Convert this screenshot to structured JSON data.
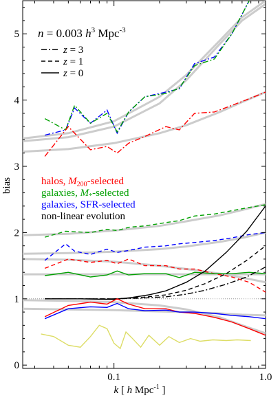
{
  "chart_data": {
    "type": "line",
    "xscale": "log",
    "xlim": [
      0.025,
      1.0
    ],
    "ylim": [
      -0.05,
      5.5
    ],
    "xlabel": "k [ h Mpc⁻¹ ]",
    "ylabel": "bias",
    "xticks": [
      {
        "value": 0.1,
        "label": "0.1"
      },
      {
        "value": 1.0,
        "label": "1.0"
      }
    ],
    "yticks": [
      {
        "value": 0,
        "label": "0"
      },
      {
        "value": 1,
        "label": "1"
      },
      {
        "value": 2,
        "label": "2"
      },
      {
        "value": 3,
        "label": "3"
      },
      {
        "value": 4,
        "label": "4"
      },
      {
        "value": 5,
        "label": "5"
      }
    ],
    "annotation": {
      "n": "n",
      "eq": " = 0.003 ",
      "h": "h",
      "exp3": "3",
      "mpc": " Mpc",
      "expm3": "-3"
    },
    "style_legend": [
      {
        "z_label": "z",
        "eq": " = 3",
        "dash": "8,3,2,3"
      },
      {
        "z_label": "z",
        "eq": " = 1",
        "dash": "6,4"
      },
      {
        "z_label": "z",
        "eq": " = 0",
        "dash": ""
      }
    ],
    "color_legend": [
      {
        "prefix": "halos, ",
        "var": "M",
        "sub": "200",
        "suffix": "-selected",
        "color": "#ff0000"
      },
      {
        "prefix": "galaxies, ",
        "var": "M",
        "sub": "*",
        "suffix": "-selected",
        "color": "#00a000"
      },
      {
        "prefix": "galaxies, SFR-selected",
        "var": "",
        "sub": "",
        "suffix": "",
        "color": "#0000ff"
      },
      {
        "prefix": "non-linear evolution",
        "var": "",
        "sub": "",
        "suffix": "",
        "color": "#000000"
      }
    ],
    "reference_line": {
      "y": 1.0,
      "color": "#999999"
    },
    "model_fits": {
      "color": "#cccccc",
      "curves": [
        {
          "x": [
            0.025,
            0.05,
            0.1,
            0.2,
            0.3,
            0.5,
            0.7,
            1.0
          ],
          "y": [
            3.38,
            3.44,
            3.6,
            3.95,
            4.3,
            4.85,
            5.2,
            5.45
          ]
        },
        {
          "x": [
            0.025,
            0.05,
            0.1,
            0.2,
            0.3,
            0.5,
            0.7,
            1.0
          ],
          "y": [
            3.42,
            3.5,
            3.68,
            4.05,
            4.38,
            4.9,
            5.25,
            5.5
          ]
        },
        {
          "x": [
            0.025,
            0.05,
            0.1,
            0.2,
            0.3,
            0.5,
            0.7,
            1.0
          ],
          "y": [
            3.22,
            3.26,
            3.35,
            3.5,
            3.62,
            3.82,
            3.97,
            4.12
          ]
        },
        {
          "x": [
            0.025,
            0.05,
            0.1,
            0.2,
            0.3,
            0.5,
            0.7,
            1.0
          ],
          "y": [
            1.96,
            1.98,
            2.03,
            2.1,
            2.17,
            2.26,
            2.34,
            2.43
          ]
        },
        {
          "x": [
            0.025,
            0.05,
            0.1,
            0.2,
            0.3,
            0.5,
            0.7,
            1.0
          ],
          "y": [
            1.68,
            1.69,
            1.71,
            1.75,
            1.79,
            1.86,
            1.92,
            2.0
          ]
        },
        {
          "x": [
            0.025,
            0.05,
            0.1,
            0.2,
            0.3,
            0.5,
            0.7,
            1.0
          ],
          "y": [
            1.6,
            1.59,
            1.56,
            1.5,
            1.45,
            1.38,
            1.32,
            1.25
          ]
        },
        {
          "x": [
            0.025,
            0.05,
            0.1,
            0.2,
            0.3,
            0.5,
            0.7,
            1.0
          ],
          "y": [
            1.37,
            1.37,
            1.37,
            1.37,
            1.37,
            1.37,
            1.37,
            1.37
          ]
        },
        {
          "x": [
            0.025,
            0.05,
            0.1,
            0.2,
            0.3,
            0.5,
            0.7,
            1.0
          ],
          "y": [
            0.85,
            0.84,
            0.83,
            0.81,
            0.8,
            0.78,
            0.76,
            0.75
          ]
        },
        {
          "x": [
            0.025,
            0.05,
            0.1,
            0.2,
            0.3,
            0.5,
            0.7,
            1.0
          ],
          "y": [
            0.98,
            0.97,
            0.95,
            0.9,
            0.84,
            0.72,
            0.6,
            0.48
          ]
        }
      ]
    },
    "series": [
      {
        "color": "#0000ff",
        "style": "dashdot",
        "x": [
          0.035,
          0.048,
          0.055,
          0.07,
          0.09,
          0.105,
          0.125,
          0.16,
          0.22,
          0.27,
          0.34,
          0.46,
          0.6,
          0.78
        ],
        "y": [
          3.47,
          3.55,
          3.88,
          3.65,
          3.85,
          3.5,
          3.82,
          4.05,
          4.12,
          4.17,
          4.55,
          4.65,
          5.0,
          5.5
        ]
      },
      {
        "color": "#00a000",
        "style": "dashdot",
        "x": [
          0.035,
          0.048,
          0.055,
          0.07,
          0.09,
          0.105,
          0.125,
          0.16,
          0.22,
          0.27,
          0.34,
          0.46,
          0.6,
          0.78
        ],
        "y": [
          3.72,
          3.55,
          3.92,
          3.65,
          3.8,
          3.52,
          3.82,
          4.05,
          4.1,
          4.18,
          4.52,
          4.62,
          5.0,
          5.5
        ]
      },
      {
        "color": "#ff0000",
        "style": "dashdot",
        "x": [
          0.035,
          0.05,
          0.07,
          0.09,
          0.105,
          0.125,
          0.16,
          0.22,
          0.27,
          0.34,
          0.46,
          0.6,
          0.78,
          1.0
        ],
        "y": [
          3.15,
          3.6,
          3.25,
          3.3,
          3.2,
          3.35,
          3.45,
          3.6,
          3.55,
          3.8,
          3.82,
          3.92,
          4.02,
          4.12
        ]
      },
      {
        "color": "#00a000",
        "style": "dashed",
        "x": [
          0.035,
          0.048,
          0.07,
          0.09,
          0.105,
          0.125,
          0.16,
          0.22,
          0.27,
          0.34,
          0.46,
          0.6,
          0.78,
          1.0
        ],
        "y": [
          1.93,
          2.02,
          2.0,
          2.05,
          2.03,
          2.08,
          2.1,
          2.15,
          2.18,
          2.25,
          2.28,
          2.33,
          2.38,
          2.42
        ]
      },
      {
        "color": "#0000ff",
        "style": "dashed",
        "x": [
          0.035,
          0.048,
          0.055,
          0.07,
          0.09,
          0.105,
          0.125,
          0.16,
          0.22,
          0.27,
          0.34,
          0.46,
          0.6,
          0.78,
          1.0
        ],
        "y": [
          1.58,
          1.83,
          1.72,
          1.67,
          1.75,
          1.7,
          1.73,
          1.78,
          1.8,
          1.83,
          1.85,
          1.88,
          1.92,
          1.97,
          2.0
        ]
      },
      {
        "color": "#ff0000",
        "style": "dashed",
        "x": [
          0.035,
          0.05,
          0.07,
          0.09,
          0.105,
          0.125,
          0.16,
          0.22,
          0.27,
          0.34,
          0.46,
          0.6,
          0.78,
          1.0
        ],
        "y": [
          1.46,
          1.6,
          1.55,
          1.58,
          1.53,
          1.6,
          1.5,
          1.5,
          1.45,
          1.45,
          1.38,
          1.33,
          1.25,
          1.1
        ]
      },
      {
        "color": "#00a000",
        "style": "solid",
        "x": [
          0.035,
          0.05,
          0.07,
          0.09,
          0.105,
          0.125,
          0.16,
          0.22,
          0.27,
          0.34,
          0.46,
          0.6,
          0.78,
          1.0
        ],
        "y": [
          1.35,
          1.4,
          1.33,
          1.36,
          1.42,
          1.36,
          1.38,
          1.38,
          1.32,
          1.4,
          1.38,
          1.38,
          1.4,
          1.38
        ]
      },
      {
        "color": "#000000",
        "style": "dashdot",
        "x": [
          0.035,
          0.06,
          0.1,
          0.15,
          0.22,
          0.3,
          0.4,
          0.55,
          0.75,
          1.0
        ],
        "y": [
          1.0,
          1.0,
          1.0,
          1.01,
          1.03,
          1.07,
          1.13,
          1.22,
          1.33,
          1.48
        ]
      },
      {
        "color": "#000000",
        "style": "dashed",
        "x": [
          0.035,
          0.06,
          0.1,
          0.15,
          0.22,
          0.3,
          0.4,
          0.55,
          0.75,
          1.0
        ],
        "y": [
          1.0,
          1.0,
          1.0,
          1.02,
          1.06,
          1.13,
          1.23,
          1.38,
          1.58,
          1.8
        ]
      },
      {
        "color": "#000000",
        "style": "solid",
        "x": [
          0.035,
          0.06,
          0.1,
          0.13,
          0.17,
          0.22,
          0.3,
          0.4,
          0.55,
          0.75,
          1.0
        ],
        "y": [
          1.0,
          1.0,
          0.99,
          1.02,
          1.06,
          1.12,
          1.25,
          1.42,
          1.7,
          2.02,
          2.4
        ]
      },
      {
        "color": "#ff0000",
        "style": "solid",
        "x": [
          0.035,
          0.05,
          0.07,
          0.09,
          0.105,
          0.125,
          0.16,
          0.22,
          0.27,
          0.34,
          0.46,
          0.6,
          0.78,
          1.0
        ],
        "y": [
          0.73,
          0.9,
          0.95,
          0.92,
          1.0,
          0.92,
          0.85,
          0.85,
          0.8,
          0.78,
          0.72,
          0.65,
          0.55,
          0.45
        ]
      },
      {
        "color": "#0000ff",
        "style": "solid",
        "x": [
          0.035,
          0.05,
          0.07,
          0.09,
          0.105,
          0.125,
          0.16,
          0.22,
          0.27,
          0.34,
          0.46,
          0.6,
          0.78,
          1.0
        ],
        "y": [
          0.7,
          0.85,
          0.88,
          0.87,
          0.93,
          0.85,
          0.82,
          0.83,
          0.8,
          0.8,
          0.78,
          0.75,
          0.73,
          0.7
        ]
      },
      {
        "color": "#dddd66",
        "style": "solid",
        "x": [
          0.033,
          0.04,
          0.05,
          0.06,
          0.07,
          0.08,
          0.09,
          0.1,
          0.11,
          0.12,
          0.13,
          0.15,
          0.17,
          0.2,
          0.23,
          0.27,
          0.32,
          0.37,
          0.45,
          0.55,
          0.65,
          0.8
        ],
        "y": [
          0.47,
          0.43,
          0.3,
          0.27,
          0.43,
          0.6,
          0.55,
          0.33,
          0.25,
          0.5,
          0.42,
          0.27,
          0.45,
          0.3,
          0.43,
          0.34,
          0.4,
          0.36,
          0.38,
          0.37,
          0.38,
          0.37
        ]
      }
    ]
  }
}
